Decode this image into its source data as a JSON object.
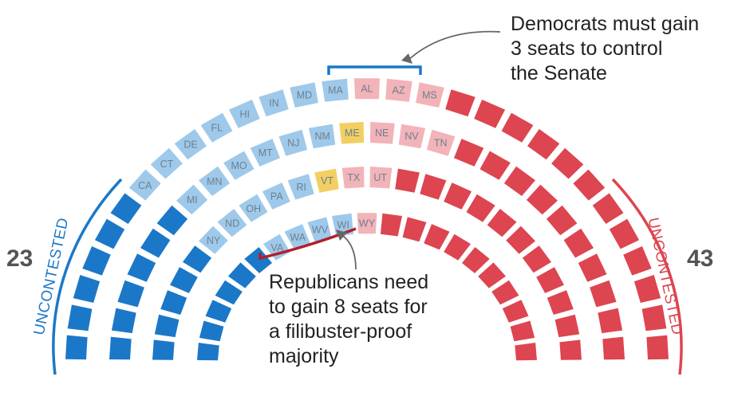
{
  "colors": {
    "dem_uncontested": "#1b78c8",
    "dem_contested": "#9ec9ea",
    "toss_up": "#f2cf63",
    "rep_contested": "#f2b3b9",
    "rep_uncontested": "#dd4550",
    "dem_bracket": "#1b78c8",
    "rep_bracket": "#b21f2d",
    "arrow": "#666666"
  },
  "counts": {
    "dem": "23",
    "rep": "43"
  },
  "uncontested": {
    "left": "UNCONTESTED",
    "right": "UNCONTESTED"
  },
  "annotations": {
    "dem": [
      "Democrats must gain",
      "3 seats to control",
      "the Senate"
    ],
    "rep": [
      "Republicans need",
      "to gain 8 seats for",
      "a filibuster-proof",
      "majority"
    ]
  },
  "rows": [
    {
      "ring": "inner",
      "seats": [
        {
          "c": "du"
        },
        {
          "c": "du"
        },
        {
          "c": "du"
        },
        {
          "c": "du"
        },
        {
          "c": "du"
        },
        {
          "c": "du"
        },
        {
          "c": "dc",
          "label": "VA"
        },
        {
          "c": "dc",
          "label": "WA"
        },
        {
          "c": "dc",
          "label": "WV"
        },
        {
          "c": "dc",
          "label": "WI"
        },
        {
          "c": "rc",
          "label": "WY"
        },
        {
          "c": "ru"
        },
        {
          "c": "ru"
        },
        {
          "c": "ru"
        },
        {
          "c": "ru"
        },
        {
          "c": "ru"
        },
        {
          "c": "ru"
        },
        {
          "c": "ru"
        },
        {
          "c": "ru"
        },
        {
          "c": "ru"
        },
        {
          "c": "ru"
        }
      ]
    },
    {
      "ring": "second",
      "seats": [
        {
          "c": "du"
        },
        {
          "c": "du"
        },
        {
          "c": "du"
        },
        {
          "c": "du"
        },
        {
          "c": "du"
        },
        {
          "c": "dc",
          "label": "NY"
        },
        {
          "c": "dc",
          "label": "ND"
        },
        {
          "c": "dc",
          "label": "OH"
        },
        {
          "c": "dc",
          "label": "PA"
        },
        {
          "c": "dc",
          "label": "RI"
        },
        {
          "c": "ty",
          "label": "VT"
        },
        {
          "c": "rc",
          "label": "TX"
        },
        {
          "c": "rc",
          "label": "UT"
        },
        {
          "c": "ru"
        },
        {
          "c": "ru"
        },
        {
          "c": "ru"
        },
        {
          "c": "ru"
        },
        {
          "c": "ru"
        },
        {
          "c": "ru"
        },
        {
          "c": "ru"
        },
        {
          "c": "ru"
        },
        {
          "c": "ru"
        },
        {
          "c": "ru"
        },
        {
          "c": "ru"
        }
      ]
    },
    {
      "ring": "third",
      "seats": [
        {
          "c": "du"
        },
        {
          "c": "du"
        },
        {
          "c": "du"
        },
        {
          "c": "du"
        },
        {
          "c": "du"
        },
        {
          "c": "du"
        },
        {
          "c": "dc",
          "label": "MI"
        },
        {
          "c": "dc",
          "label": "MN"
        },
        {
          "c": "dc",
          "label": "MO"
        },
        {
          "c": "dc",
          "label": "MT"
        },
        {
          "c": "dc",
          "label": "NJ"
        },
        {
          "c": "dc",
          "label": "NM"
        },
        {
          "c": "ty",
          "label": "ME"
        },
        {
          "c": "rc",
          "label": "NE"
        },
        {
          "c": "rc",
          "label": "NV"
        },
        {
          "c": "rc",
          "label": "TN"
        },
        {
          "c": "ru"
        },
        {
          "c": "ru"
        },
        {
          "c": "ru"
        },
        {
          "c": "ru"
        },
        {
          "c": "ru"
        },
        {
          "c": "ru"
        },
        {
          "c": "ru"
        },
        {
          "c": "ru"
        },
        {
          "c": "ru"
        },
        {
          "c": "ru"
        }
      ]
    },
    {
      "ring": "outer",
      "seats": [
        {
          "c": "du"
        },
        {
          "c": "du"
        },
        {
          "c": "du"
        },
        {
          "c": "du"
        },
        {
          "c": "du"
        },
        {
          "c": "du"
        },
        {
          "c": "dc",
          "label": "CA"
        },
        {
          "c": "dc",
          "label": "CT"
        },
        {
          "c": "dc",
          "label": "DE"
        },
        {
          "c": "dc",
          "label": "FL"
        },
        {
          "c": "dc",
          "label": "HI"
        },
        {
          "c": "dc",
          "label": "IN"
        },
        {
          "c": "dc",
          "label": "MD"
        },
        {
          "c": "dc",
          "label": "MA"
        },
        {
          "c": "rc",
          "label": "AL"
        },
        {
          "c": "rc",
          "label": "AZ"
        },
        {
          "c": "rc",
          "label": "MS"
        },
        {
          "c": "ru"
        },
        {
          "c": "ru"
        },
        {
          "c": "ru"
        },
        {
          "c": "ru"
        },
        {
          "c": "ru"
        },
        {
          "c": "ru"
        },
        {
          "c": "ru"
        },
        {
          "c": "ru"
        },
        {
          "c": "ru"
        },
        {
          "c": "ru"
        },
        {
          "c": "ru"
        },
        {
          "c": "ru"
        }
      ]
    }
  ]
}
